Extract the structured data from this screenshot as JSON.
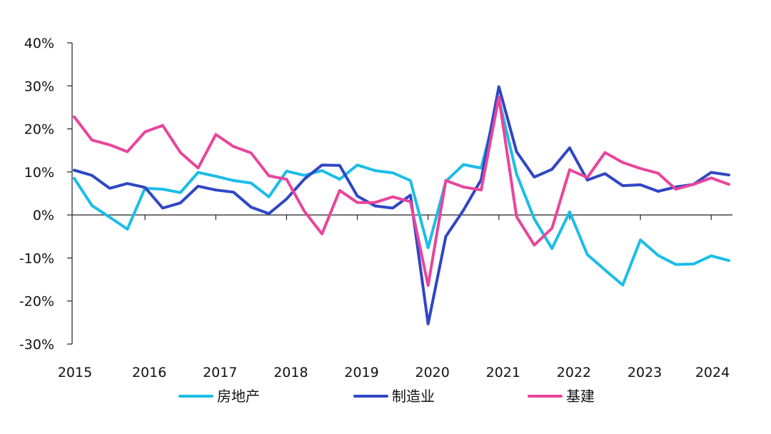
{
  "chart_data": {
    "type": "line",
    "title": "",
    "xlabel": "",
    "ylabel": "",
    "ylim": [
      -30,
      40
    ],
    "yticks": [
      40,
      30,
      20,
      10,
      0,
      -10,
      -20,
      -30
    ],
    "ytick_labels": [
      "40%",
      "30%",
      "20%",
      "10%",
      "0%",
      "-10%",
      "-20%",
      "-30%"
    ],
    "xticks": [
      "2015",
      "2016",
      "2017",
      "2018",
      "2019",
      "2020",
      "2021",
      "2022",
      "2023",
      "2024"
    ],
    "grid": false,
    "legend_position": "bottom",
    "x_period": "quarterly, 2015Q1–2024Q2",
    "series": [
      {
        "name": "房地产",
        "color": "#1bbde8",
        "values": [
          8.5,
          2.2,
          -0.5,
          -3.3,
          6.2,
          6.0,
          5.2,
          9.9,
          9.0,
          8.0,
          7.4,
          4.2,
          10.2,
          9.2,
          10.3,
          8.3,
          11.6,
          10.3,
          9.8,
          8.0,
          -7.6,
          7.8,
          11.7,
          10.9,
          27.0,
          9.5,
          -0.9,
          -7.8,
          0.7,
          -9.2,
          -12.8,
          -16.3,
          -5.8,
          -9.4,
          -11.5,
          -11.4,
          -9.5,
          -10.6
        ]
      },
      {
        "name": "制造业",
        "color": "#2f46c4",
        "values": [
          10.4,
          9.2,
          6.2,
          7.3,
          6.4,
          1.6,
          2.8,
          6.7,
          5.8,
          5.3,
          1.8,
          0.3,
          3.7,
          8.3,
          11.6,
          11.5,
          4.4,
          2.1,
          1.6,
          4.6,
          -25.3,
          -5.0,
          1.1,
          8.2,
          29.8,
          14.7,
          8.8,
          10.6,
          15.6,
          8.1,
          9.6,
          6.8,
          7.0,
          5.5,
          6.5,
          7.1,
          9.9,
          9.3
        ]
      },
      {
        "name": "基建",
        "color": "#e8459b",
        "values": [
          22.8,
          17.4,
          16.3,
          14.7,
          19.3,
          20.8,
          14.5,
          10.9,
          18.7,
          15.9,
          14.4,
          9.1,
          8.3,
          0.9,
          -4.4,
          5.7,
          2.9,
          2.9,
          4.2,
          3.1,
          -16.4,
          8.0,
          6.5,
          5.8,
          27.4,
          -0.4,
          -7.0,
          -3.1,
          10.5,
          8.7,
          14.5,
          12.2,
          10.8,
          9.7,
          6.0,
          7.1,
          8.6,
          7.1
        ]
      }
    ]
  }
}
